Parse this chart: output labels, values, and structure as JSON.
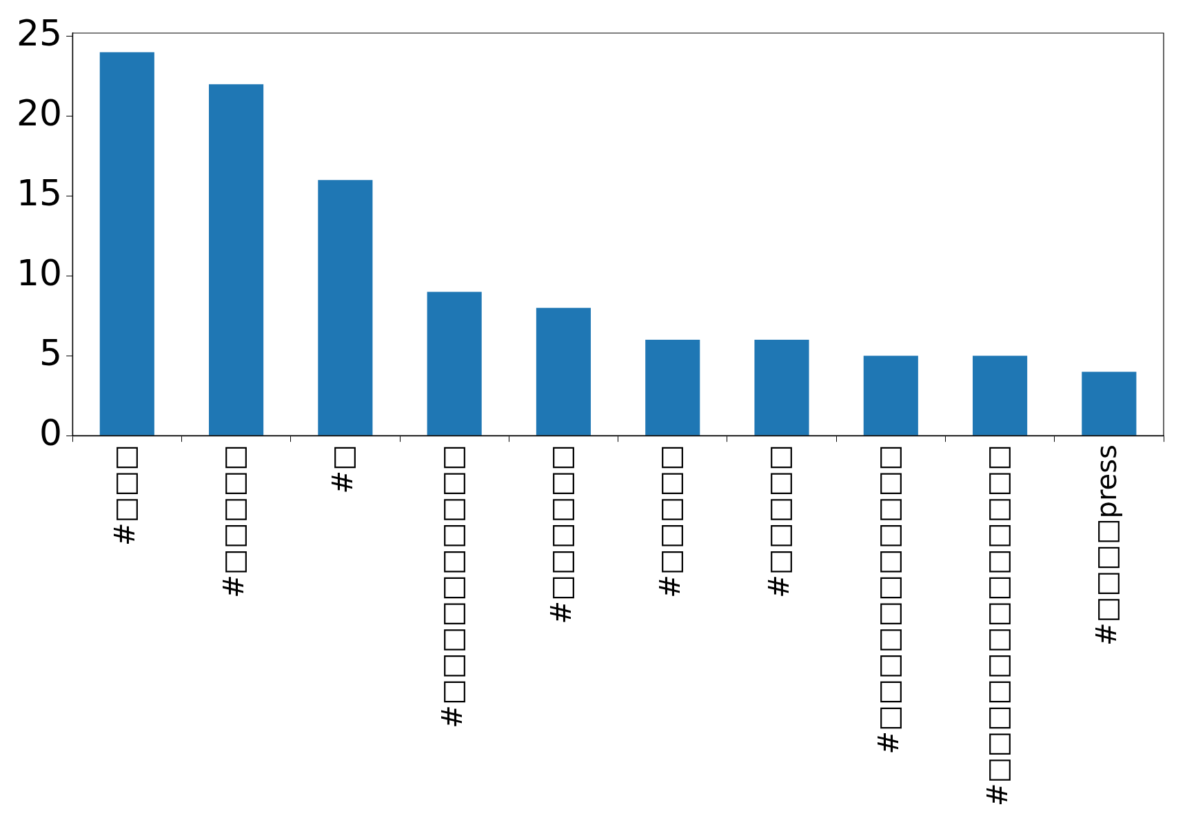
{
  "chart_data": {
    "type": "bar",
    "categories": [
      "#□□□",
      "#□□□□□",
      "#□",
      "#□□□□□□□□□□",
      "#□□□□□□",
      "#□□□□□",
      "#□□□□□",
      "#□□□□□□□□□□□",
      "#□□□□□□□□□□□□□",
      "#□□□□press"
    ],
    "values": [
      24,
      22,
      16,
      9,
      8,
      6,
      6,
      5,
      5,
      4
    ],
    "color": "#1f77b4",
    "ylim": [
      0,
      25.2
    ],
    "yticks": [
      0,
      5,
      10,
      15,
      20,
      25
    ],
    "grid": false,
    "legend": false
  }
}
